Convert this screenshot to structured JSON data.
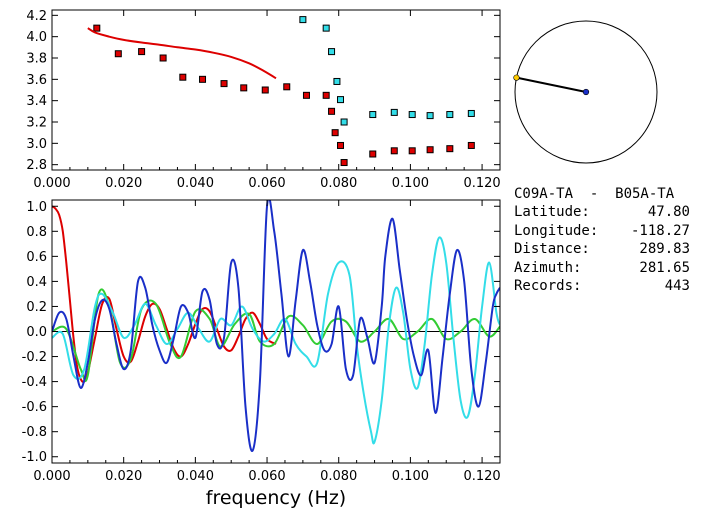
{
  "colors": {
    "background": "#ffffff",
    "axes": "#000000",
    "red": "#dd0000",
    "cyan": "#33dde8",
    "blue": "#1a2fc8",
    "green": "#33cc33",
    "circle_point": "#ffcc00",
    "circle_center": "#1a2fc8"
  },
  "station_pair": "C09A-TA  -  B05A-TA",
  "info": [
    {
      "label": "Latitude:",
      "value": "47.80"
    },
    {
      "label": "Longitude:",
      "value": "-118.27"
    },
    {
      "label": "Distance:",
      "value": "289.83"
    },
    {
      "label": "Azimuth:",
      "value": "281.65"
    },
    {
      "label": "Records:",
      "value": "443"
    }
  ],
  "azimuth_deg": 281.65,
  "chart_data": [
    {
      "type": "scatter",
      "xlim": [
        0,
        0.125
      ],
      "ylim": [
        2.75,
        4.25
      ],
      "x_ticks": [
        "0.000",
        "0.020",
        "0.040",
        "0.060",
        "0.080",
        "0.100",
        "0.120"
      ],
      "y_ticks": [
        "2.8",
        "3.0",
        "3.2",
        "3.4",
        "3.6",
        "3.8",
        "4.0",
        "4.2"
      ],
      "series": [
        {
          "color": "red",
          "mark": "square",
          "points": [
            [
              0.0125,
              4.08
            ],
            [
              0.0185,
              3.84
            ],
            [
              0.025,
              3.86
            ],
            [
              0.031,
              3.8
            ],
            [
              0.0365,
              3.62
            ],
            [
              0.042,
              3.6
            ],
            [
              0.048,
              3.56
            ],
            [
              0.0535,
              3.52
            ],
            [
              0.0595,
              3.5
            ],
            [
              0.0655,
              3.53
            ],
            [
              0.071,
              3.45
            ],
            [
              0.0765,
              3.45
            ],
            [
              0.078,
              3.3
            ],
            [
              0.079,
              3.1
            ],
            [
              0.0805,
              2.98
            ],
            [
              0.0815,
              2.82
            ],
            [
              0.0895,
              2.9
            ],
            [
              0.0955,
              2.93
            ],
            [
              0.1005,
              2.93
            ],
            [
              0.1055,
              2.94
            ],
            [
              0.111,
              2.95
            ],
            [
              0.117,
              2.98
            ]
          ]
        },
        {
          "color": "cyan",
          "mark": "square",
          "points": [
            [
              0.07,
              4.16
            ],
            [
              0.0765,
              4.08
            ],
            [
              0.078,
              3.86
            ],
            [
              0.0795,
              3.58
            ],
            [
              0.0805,
              3.41
            ],
            [
              0.0815,
              3.2
            ],
            [
              0.0895,
              3.27
            ],
            [
              0.0955,
              3.29
            ],
            [
              0.1005,
              3.27
            ],
            [
              0.1055,
              3.26
            ],
            [
              0.111,
              3.27
            ],
            [
              0.117,
              3.28
            ]
          ]
        },
        {
          "color": "red",
          "mark": "line",
          "points": [
            [
              0.01,
              4.08
            ],
            [
              0.012,
              4.04
            ],
            [
              0.016,
              4.0
            ],
            [
              0.02,
              3.97
            ],
            [
              0.025,
              3.945
            ],
            [
              0.03,
              3.925
            ],
            [
              0.035,
              3.9
            ],
            [
              0.04,
              3.88
            ],
            [
              0.045,
              3.85
            ],
            [
              0.05,
              3.81
            ],
            [
              0.055,
              3.75
            ],
            [
              0.059,
              3.68
            ],
            [
              0.0625,
              3.61
            ]
          ]
        }
      ]
    },
    {
      "type": "line",
      "xlabel": "frequency (Hz)",
      "xlim": [
        0,
        0.125
      ],
      "ylim": [
        -1.05,
        1.05
      ],
      "x_ticks": [
        "0.000",
        "0.020",
        "0.040",
        "0.060",
        "0.080",
        "0.100",
        "0.120"
      ],
      "y_ticks": [
        "1.0",
        "0.8",
        "0.6",
        "0.4",
        "0.2",
        "0.0",
        "-0.2",
        "-0.4",
        "-0.6",
        "-0.8",
        "-1.0"
      ],
      "series": [
        {
          "color": "red",
          "x": [
            0.0,
            0.001,
            0.002,
            0.003,
            0.004,
            0.005,
            0.006,
            0.007,
            0.008,
            0.009,
            0.01,
            0.012,
            0.014,
            0.016,
            0.018,
            0.02,
            0.022,
            0.024,
            0.026,
            0.028,
            0.03,
            0.032,
            0.034,
            0.036,
            0.038,
            0.04,
            0.042,
            0.044,
            0.046,
            0.048,
            0.05,
            0.052,
            0.054,
            0.056,
            0.058,
            0.06,
            0.0625
          ],
          "y": [
            1.0,
            0.98,
            0.93,
            0.8,
            0.55,
            0.25,
            -0.05,
            -0.28,
            -0.38,
            -0.4,
            -0.33,
            -0.05,
            0.22,
            0.26,
            0.02,
            -0.2,
            -0.24,
            -0.08,
            0.12,
            0.22,
            0.18,
            0.02,
            -0.14,
            -0.2,
            -0.1,
            0.06,
            0.18,
            0.16,
            0.02,
            -0.12,
            -0.15,
            -0.04,
            0.1,
            0.15,
            0.06,
            -0.06,
            -0.1
          ]
        },
        {
          "color": "green",
          "x": [
            0.0,
            0.004,
            0.008,
            0.01,
            0.013,
            0.016,
            0.019,
            0.022,
            0.025,
            0.029,
            0.033,
            0.036,
            0.04,
            0.044,
            0.047,
            0.051,
            0.055,
            0.058,
            0.062,
            0.066,
            0.07,
            0.074,
            0.078,
            0.082,
            0.086,
            0.09,
            0.094,
            0.098,
            0.102,
            0.106,
            0.11,
            0.114,
            0.118,
            0.122,
            0.125
          ],
          "y": [
            0.0,
            0.02,
            -0.3,
            -0.35,
            0.3,
            0.2,
            -0.25,
            -0.22,
            0.18,
            0.22,
            -0.1,
            -0.2,
            0.16,
            0.1,
            -0.12,
            0.06,
            0.14,
            -0.08,
            -0.1,
            0.12,
            0.05,
            -0.1,
            0.08,
            0.08,
            -0.08,
            0.0,
            0.1,
            -0.06,
            0.0,
            0.1,
            -0.06,
            0.0,
            0.1,
            -0.04,
            0.04
          ]
        },
        {
          "color": "cyan",
          "x": [
            0.0,
            0.003,
            0.006,
            0.009,
            0.012,
            0.014,
            0.017,
            0.02,
            0.023,
            0.026,
            0.029,
            0.032,
            0.035,
            0.038,
            0.041,
            0.044,
            0.047,
            0.05,
            0.053,
            0.056,
            0.059,
            0.062,
            0.065,
            0.068,
            0.071,
            0.074,
            0.077,
            0.08,
            0.083,
            0.085,
            0.087,
            0.089,
            0.09,
            0.092,
            0.094,
            0.096,
            0.098,
            0.1,
            0.102,
            0.104,
            0.106,
            0.108,
            0.11,
            0.112,
            0.114,
            0.116,
            0.118,
            0.12,
            0.122,
            0.124,
            0.125
          ],
          "y": [
            -0.05,
            -0.02,
            -0.35,
            -0.3,
            0.2,
            0.3,
            0.15,
            -0.05,
            0.05,
            0.22,
            0.05,
            -0.1,
            0.02,
            0.15,
            0.02,
            -0.08,
            0.1,
            0.05,
            0.2,
            0.02,
            -0.08,
            -0.02,
            0.1,
            -0.1,
            -0.2,
            -0.25,
            0.3,
            0.55,
            0.45,
            -0.1,
            -0.5,
            -0.8,
            -0.88,
            -0.55,
            0.05,
            0.35,
            0.15,
            -0.3,
            -0.45,
            -0.1,
            0.45,
            0.75,
            0.55,
            -0.05,
            -0.55,
            -0.68,
            -0.35,
            0.2,
            0.55,
            0.15,
            0.05
          ]
        },
        {
          "color": "blue",
          "x": [
            0.0,
            0.002,
            0.004,
            0.006,
            0.008,
            0.01,
            0.012,
            0.014,
            0.016,
            0.018,
            0.02,
            0.022,
            0.024,
            0.026,
            0.028,
            0.03,
            0.032,
            0.034,
            0.036,
            0.038,
            0.04,
            0.042,
            0.044,
            0.046,
            0.048,
            0.05,
            0.052,
            0.054,
            0.056,
            0.058,
            0.06,
            0.062,
            0.064,
            0.066,
            0.068,
            0.07,
            0.072,
            0.074,
            0.076,
            0.078,
            0.08,
            0.082,
            0.084,
            0.086,
            0.088,
            0.09,
            0.092,
            0.093,
            0.095,
            0.097,
            0.099,
            0.101,
            0.103,
            0.105,
            0.107,
            0.109,
            0.111,
            0.113,
            0.115,
            0.117,
            0.119,
            0.121,
            0.123,
            0.124,
            0.125
          ],
          "y": [
            0.0,
            0.15,
            0.1,
            -0.2,
            -0.45,
            -0.25,
            0.1,
            0.25,
            0.18,
            -0.1,
            -0.3,
            -0.15,
            0.4,
            0.35,
            0.05,
            -0.15,
            -0.25,
            -0.05,
            0.2,
            0.15,
            -0.05,
            0.32,
            0.25,
            -0.1,
            -0.05,
            0.55,
            0.35,
            -0.6,
            -0.95,
            -0.4,
            1.0,
            0.8,
            0.3,
            -0.2,
            0.25,
            0.65,
            0.4,
            0.05,
            -0.15,
            -0.1,
            0.2,
            -0.3,
            -0.35,
            0.1,
            -0.05,
            -0.25,
            0.2,
            0.6,
            0.9,
            0.5,
            0.1,
            -0.2,
            -0.35,
            -0.15,
            -0.65,
            -0.2,
            0.3,
            0.65,
            0.4,
            -0.3,
            -0.6,
            -0.25,
            0.2,
            0.3,
            0.35
          ]
        }
      ]
    }
  ]
}
